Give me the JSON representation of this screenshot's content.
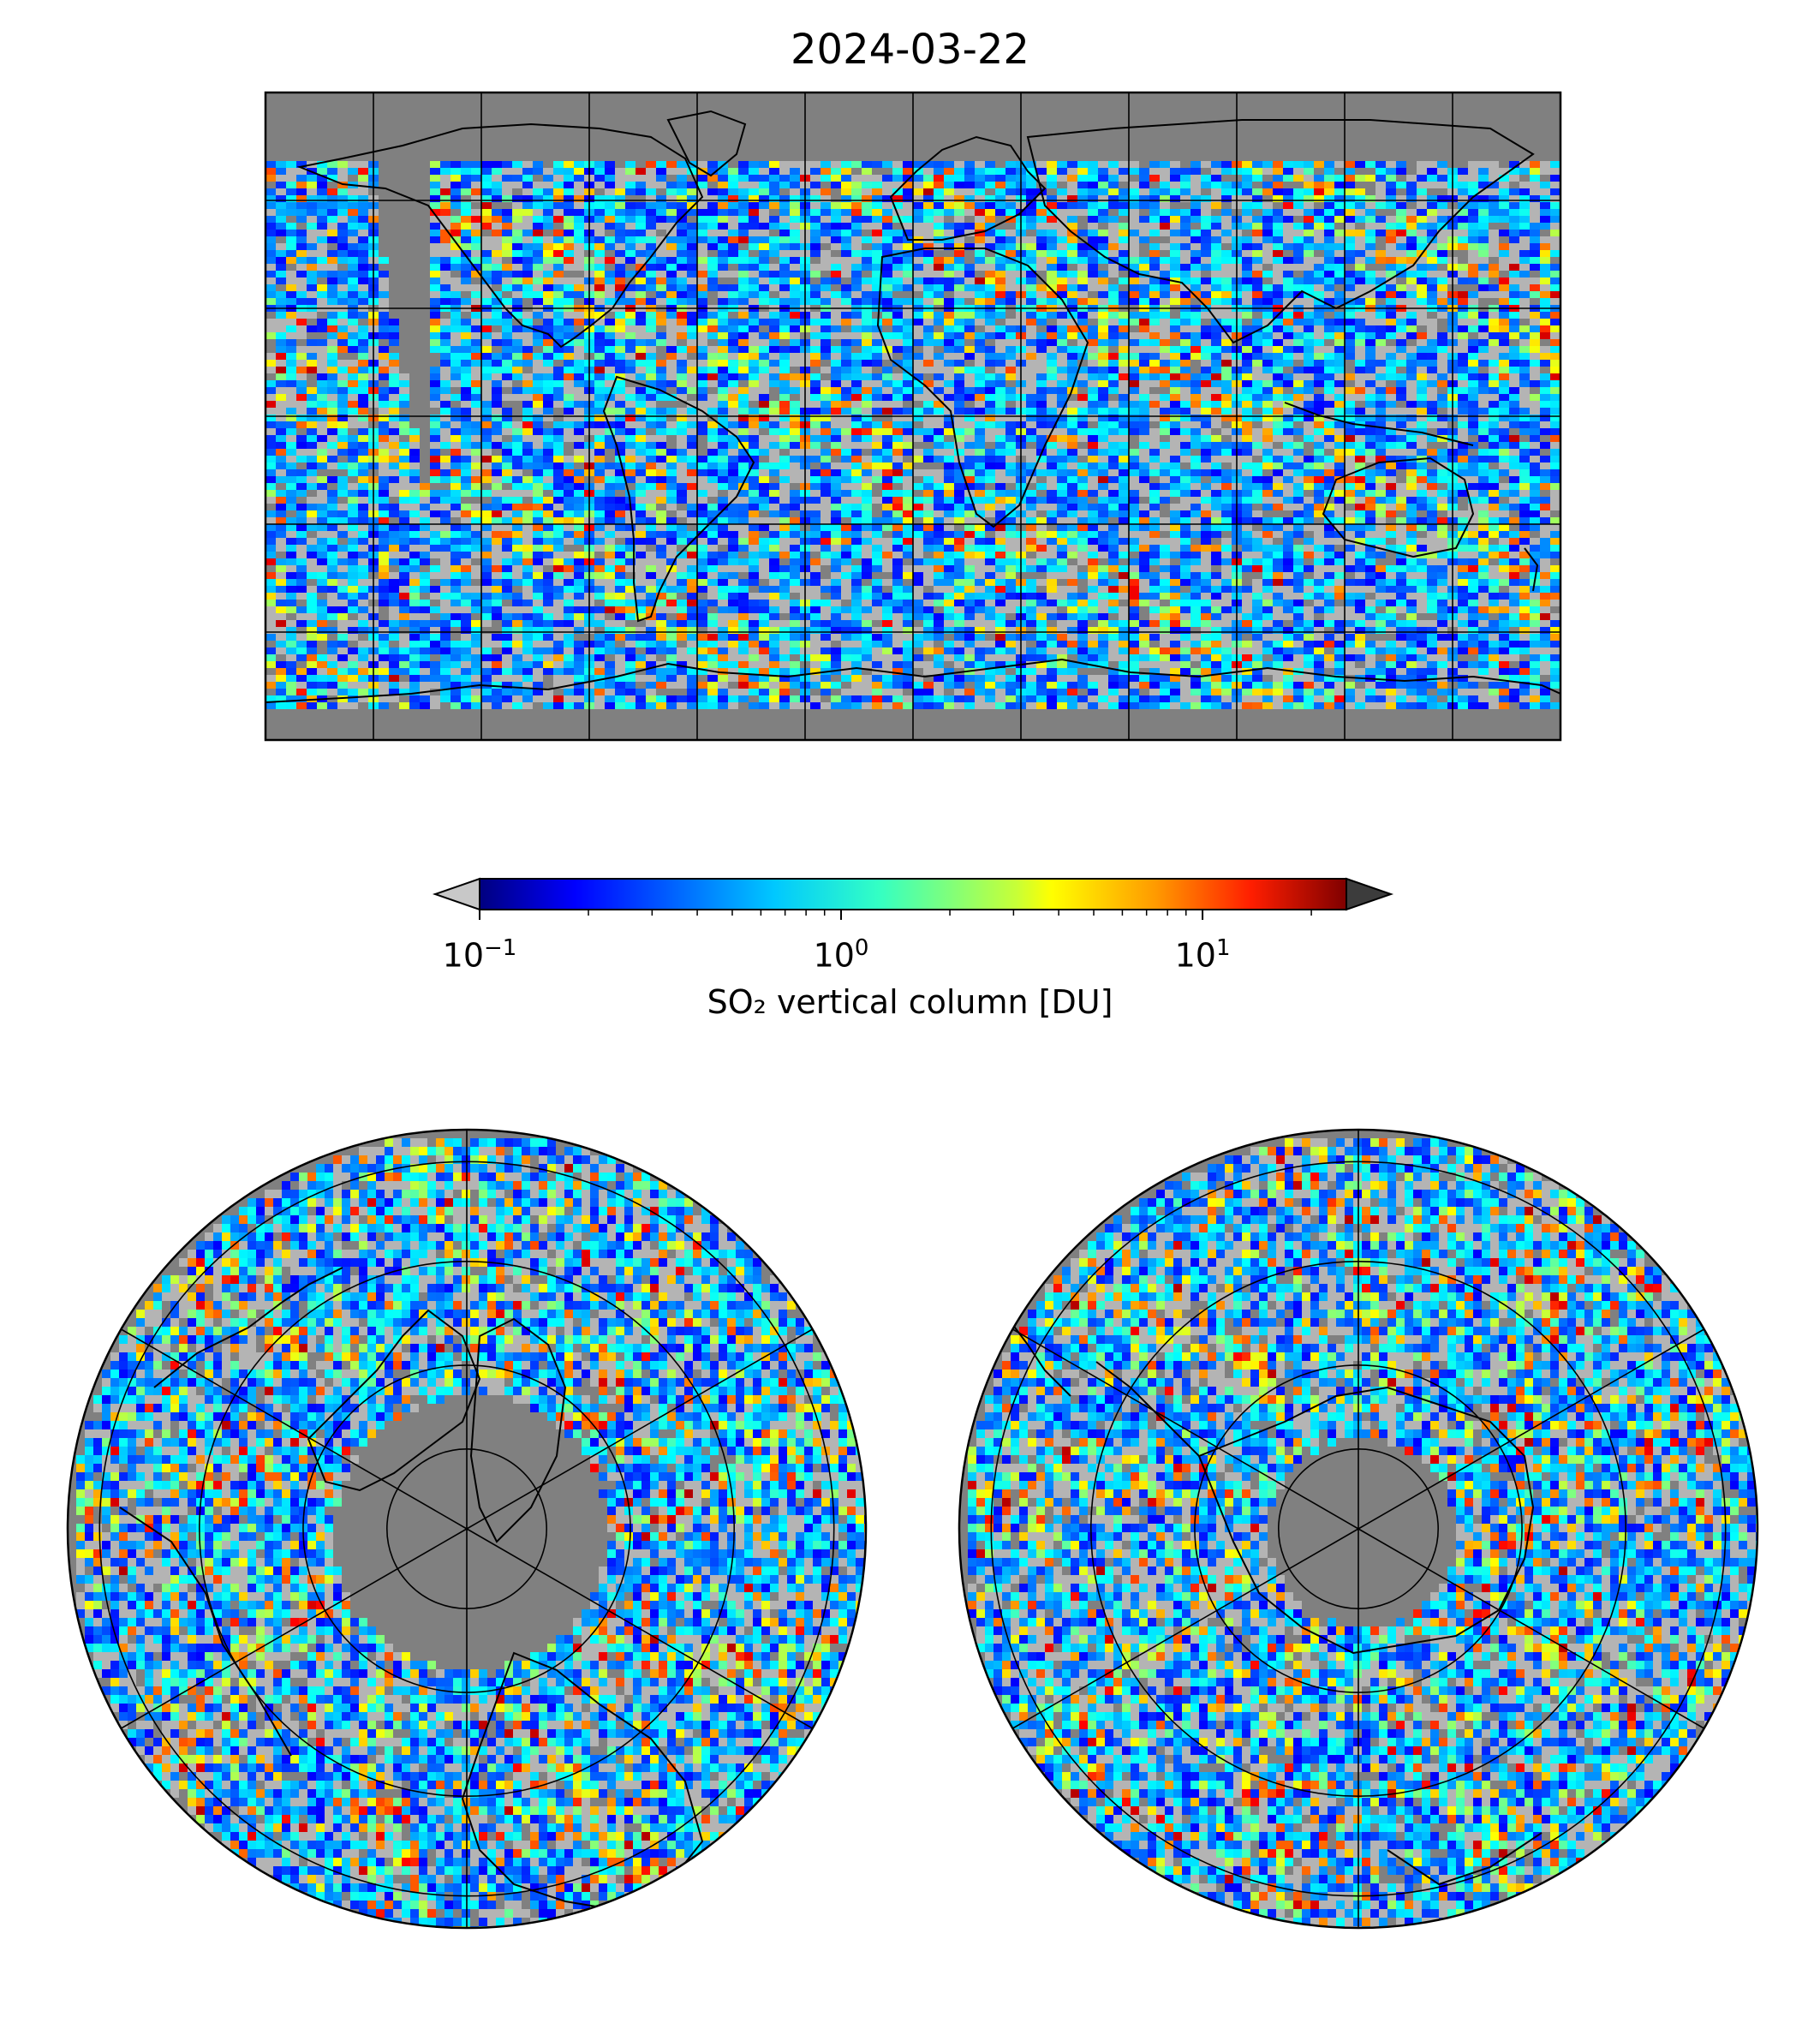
{
  "figure": {
    "title": "2024-03-22"
  },
  "colorbar": {
    "label": "SO₂ vertical column [DU]",
    "scale": "log",
    "range": [
      0.1,
      25
    ],
    "extend": "both",
    "colormap": "jet",
    "under_color": "#c8c8c8",
    "over_color": "#3c3c3c",
    "tick_labels": [
      {
        "base": "10",
        "exp": "−1",
        "value": 0.1
      },
      {
        "base": "10",
        "exp": "0",
        "value": 1
      },
      {
        "base": "10",
        "exp": "1",
        "value": 10
      }
    ]
  },
  "maps": {
    "global": {
      "projection": "PlateCarree",
      "lon_lines": [
        -180,
        -150,
        -120,
        -90,
        -60,
        -30,
        0,
        30,
        60,
        90,
        120,
        150,
        180
      ],
      "lat_lines": [
        -90,
        -60,
        -30,
        0,
        30,
        60,
        90
      ]
    },
    "north_polar": {
      "projection": "NorthPolarStereo",
      "lat_circles": [
        80,
        60,
        40,
        20
      ]
    },
    "south_polar": {
      "projection": "SouthPolarStereo",
      "lat_circles": [
        -80,
        -60,
        -40,
        -20
      ]
    },
    "background_color": "#808080",
    "coastline_color": "#000000"
  }
}
